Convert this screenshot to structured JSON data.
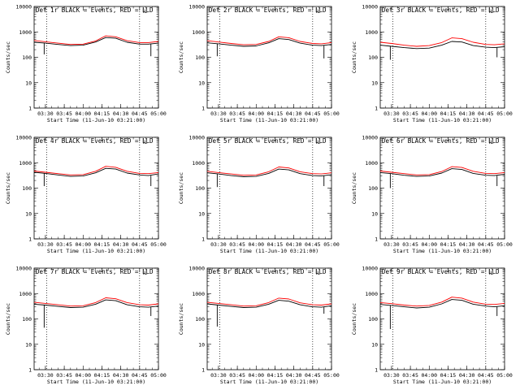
{
  "figure": {
    "ylabel": "Counts/sec",
    "xlabel": "Start Time (11-Jun-10 03:21:00)",
    "legend": "BLACK = Events, RED = LLD",
    "y_tick_labels": [
      "1",
      "10",
      "100",
      "1000",
      "10000"
    ],
    "x_tick_labels": [
      "03:30",
      "03:45",
      "04:00",
      "04:15",
      "04:30",
      "04:45",
      "05:00"
    ],
    "colors": {
      "events": "#000000",
      "lld": "#ff0000",
      "axes": "#000000",
      "background": "#ffffff"
    }
  },
  "chart_data": [
    {
      "type": "line",
      "title": "Det 1r BLACK = Events, RED = LLD",
      "xlabel": "Start Time (11-Jun-10 03:21:00)",
      "ylabel": "Counts/sec",
      "x_unit": "time (11-Jun-10)",
      "xlim": [
        "03:21",
        "05:00"
      ],
      "ylim": [
        1,
        10000
      ],
      "yscale": "log",
      "grid": false,
      "x_ticks": [
        "03:30",
        "03:45",
        "04:00",
        "04:15",
        "04:30",
        "04:45",
        "05:00"
      ],
      "y_ticks": [
        1,
        10,
        100,
        1000,
        10000
      ],
      "vlines": [
        "03:31",
        "04:45"
      ],
      "marker_label": "L",
      "marker_x": "04:48",
      "x": [
        "03:21",
        "03:30",
        "03:40",
        "03:50",
        "04:00",
        "04:10",
        "04:18",
        "04:26",
        "04:35",
        "04:45",
        "04:52",
        "05:00"
      ],
      "series": [
        {
          "name": "Events",
          "color": "#000000",
          "values": [
            390,
            360,
            320,
            290,
            300,
            400,
            600,
            560,
            390,
            330,
            330,
            360
          ],
          "drops": [
            [
              "03:29",
              130
            ],
            [
              "04:54",
              110
            ]
          ]
        },
        {
          "name": "LLD",
          "color": "#ff0000",
          "values": [
            460,
            410,
            360,
            320,
            330,
            440,
            700,
            640,
            450,
            380,
            380,
            420
          ],
          "drops": []
        }
      ]
    },
    {
      "type": "line",
      "title": "Det 2r BLACK = Events, RED = LLD",
      "xlabel": "Start Time (11-Jun-10 03:21:00)",
      "ylabel": "Counts/sec",
      "x_unit": "time (11-Jun-10)",
      "xlim": [
        "03:21",
        "05:00"
      ],
      "ylim": [
        1,
        10000
      ],
      "yscale": "log",
      "grid": false,
      "x_ticks": [
        "03:30",
        "03:45",
        "04:00",
        "04:15",
        "04:30",
        "04:45",
        "05:00"
      ],
      "y_ticks": [
        1,
        10,
        100,
        1000,
        10000
      ],
      "vlines": [
        "03:31",
        "04:45"
      ],
      "marker_label": "L",
      "marker_x": "04:48",
      "x": [
        "03:21",
        "03:30",
        "03:40",
        "03:50",
        "04:00",
        "04:10",
        "04:18",
        "04:26",
        "04:35",
        "04:45",
        "04:52",
        "05:00"
      ],
      "series": [
        {
          "name": "Events",
          "color": "#000000",
          "values": [
            370,
            340,
            300,
            270,
            280,
            370,
            540,
            500,
            360,
            300,
            290,
            320
          ],
          "drops": [
            [
              "03:29",
              110
            ],
            [
              "04:54",
              90
            ]
          ]
        },
        {
          "name": "LLD",
          "color": "#ff0000",
          "values": [
            450,
            400,
            350,
            310,
            320,
            420,
            640,
            590,
            420,
            350,
            340,
            380
          ],
          "drops": []
        }
      ]
    },
    {
      "type": "line",
      "title": "Det 3r BLACK = Events, RED = LLD",
      "xlabel": "Start Time (11-Jun-10 03:21:00)",
      "ylabel": "Counts/sec",
      "x_unit": "time (11-Jun-10)",
      "xlim": [
        "03:21",
        "05:00"
      ],
      "ylim": [
        1,
        10000
      ],
      "yscale": "log",
      "grid": false,
      "x_ticks": [
        "03:30",
        "03:45",
        "04:00",
        "04:15",
        "04:30",
        "04:45",
        "05:00"
      ],
      "y_ticks": [
        1,
        10,
        100,
        1000,
        10000
      ],
      "vlines": [
        "03:31",
        "04:45"
      ],
      "marker_label": "L",
      "marker_x": "04:48",
      "x": [
        "03:21",
        "03:30",
        "03:40",
        "03:50",
        "04:00",
        "04:10",
        "04:18",
        "04:26",
        "04:35",
        "04:45",
        "04:52",
        "05:00"
      ],
      "series": [
        {
          "name": "Events",
          "color": "#000000",
          "values": [
            300,
            270,
            240,
            220,
            230,
            300,
            420,
            400,
            290,
            250,
            240,
            260
          ],
          "drops": [
            [
              "03:29",
              80
            ],
            [
              "04:54",
              100
            ]
          ]
        },
        {
          "name": "LLD",
          "color": "#ff0000",
          "values": [
            390,
            350,
            300,
            270,
            290,
            380,
            580,
            540,
            390,
            320,
            310,
            340
          ],
          "drops": []
        }
      ]
    },
    {
      "type": "line",
      "title": "Det 4r BLACK = Events, RED = LLD",
      "xlabel": "Start Time (11-Jun-10 03:21:00)",
      "ylabel": "Counts/sec",
      "x_unit": "time (11-Jun-10)",
      "xlim": [
        "03:21",
        "05:00"
      ],
      "ylim": [
        1,
        10000
      ],
      "yscale": "log",
      "grid": false,
      "x_ticks": [
        "03:30",
        "03:45",
        "04:00",
        "04:15",
        "04:30",
        "04:45",
        "05:00"
      ],
      "y_ticks": [
        1,
        10,
        100,
        1000,
        10000
      ],
      "vlines": [
        "03:31",
        "04:45"
      ],
      "marker_label": "L",
      "marker_x": "04:48",
      "x": [
        "03:21",
        "03:30",
        "03:40",
        "03:50",
        "04:00",
        "04:10",
        "04:18",
        "04:26",
        "04:35",
        "04:45",
        "04:52",
        "05:00"
      ],
      "series": [
        {
          "name": "Events",
          "color": "#000000",
          "values": [
            420,
            380,
            330,
            290,
            300,
            400,
            600,
            560,
            390,
            330,
            310,
            360
          ],
          "drops": [
            [
              "03:29",
              120
            ],
            [
              "04:54",
              120
            ]
          ]
        },
        {
          "name": "LLD",
          "color": "#ff0000",
          "values": [
            470,
            420,
            370,
            330,
            340,
            460,
            720,
            660,
            460,
            380,
            370,
            410
          ],
          "drops": []
        }
      ]
    },
    {
      "type": "line",
      "title": "Det 5r BLACK = Events, RED = LLD",
      "xlabel": "Start Time (11-Jun-10 03:21:00)",
      "ylabel": "Counts/sec",
      "x_unit": "time (11-Jun-10)",
      "xlim": [
        "03:21",
        "05:00"
      ],
      "ylim": [
        1,
        10000
      ],
      "yscale": "log",
      "grid": false,
      "x_ticks": [
        "03:30",
        "03:45",
        "04:00",
        "04:15",
        "04:30",
        "04:45",
        "05:00"
      ],
      "y_ticks": [
        1,
        10,
        100,
        1000,
        10000
      ],
      "vlines": [
        "03:31",
        "04:45"
      ],
      "marker_label": "L",
      "marker_x": "04:48",
      "x": [
        "03:21",
        "03:30",
        "03:40",
        "03:50",
        "04:00",
        "04:10",
        "04:18",
        "04:26",
        "04:35",
        "04:45",
        "04:52",
        "05:00"
      ],
      "series": [
        {
          "name": "Events",
          "color": "#000000",
          "values": [
            400,
            360,
            310,
            280,
            290,
            380,
            560,
            520,
            370,
            310,
            300,
            340
          ],
          "drops": [
            [
              "03:29",
              110
            ],
            [
              "04:54",
              120
            ]
          ]
        },
        {
          "name": "LLD",
          "color": "#ff0000",
          "values": [
            460,
            410,
            360,
            320,
            330,
            440,
            680,
            620,
            440,
            370,
            360,
            400
          ],
          "drops": []
        }
      ]
    },
    {
      "type": "line",
      "title": "Det 6r BLACK = Events, RED = LLD",
      "xlabel": "Start Time (11-Jun-10 03:21:00)",
      "ylabel": "Counts/sec",
      "x_unit": "time (11-Jun-10)",
      "xlim": [
        "03:21",
        "05:00"
      ],
      "ylim": [
        1,
        10000
      ],
      "yscale": "log",
      "grid": false,
      "x_ticks": [
        "03:30",
        "03:45",
        "04:00",
        "04:15",
        "04:30",
        "04:45",
        "05:00"
      ],
      "y_ticks": [
        1,
        10,
        100,
        1000,
        10000
      ],
      "vlines": [
        "03:31",
        "04:45"
      ],
      "marker_label": "L",
      "marker_x": "04:48",
      "x": [
        "03:21",
        "03:30",
        "03:40",
        "03:50",
        "04:00",
        "04:10",
        "04:18",
        "04:26",
        "04:35",
        "04:45",
        "04:52",
        "05:00"
      ],
      "series": [
        {
          "name": "Events",
          "color": "#000000",
          "values": [
            410,
            370,
            320,
            290,
            300,
            390,
            580,
            540,
            380,
            320,
            310,
            350
          ],
          "drops": [
            [
              "03:29",
              100
            ],
            [
              "04:54",
              120
            ]
          ]
        },
        {
          "name": "LLD",
          "color": "#ff0000",
          "values": [
            470,
            420,
            370,
            330,
            340,
            450,
            700,
            650,
            460,
            380,
            370,
            410
          ],
          "drops": []
        }
      ]
    },
    {
      "type": "line",
      "title": "Det 7r BLACK = Events, RED = LLD",
      "xlabel": "Start Time (11-Jun-10 03:21:00)",
      "ylabel": "Counts/sec",
      "x_unit": "time (11-Jun-10)",
      "xlim": [
        "03:21",
        "05:00"
      ],
      "ylim": [
        1,
        10000
      ],
      "yscale": "log",
      "grid": false,
      "x_ticks": [
        "03:30",
        "03:45",
        "04:00",
        "04:15",
        "04:30",
        "04:45",
        "05:00"
      ],
      "y_ticks": [
        1,
        10,
        100,
        1000,
        10000
      ],
      "vlines": [
        "03:31",
        "04:45"
      ],
      "marker_label": "L",
      "marker_x": "04:48",
      "x": [
        "03:21",
        "03:30",
        "03:40",
        "03:50",
        "04:00",
        "04:10",
        "04:18",
        "04:26",
        "04:35",
        "04:45",
        "04:52",
        "05:00"
      ],
      "series": [
        {
          "name": "Events",
          "color": "#000000",
          "values": [
            380,
            350,
            310,
            280,
            290,
            380,
            560,
            520,
            360,
            300,
            290,
            320
          ],
          "drops": [
            [
              "03:29",
              45
            ],
            [
              "04:54",
              130
            ]
          ]
        },
        {
          "name": "LLD",
          "color": "#ff0000",
          "values": [
            450,
            410,
            360,
            320,
            330,
            440,
            680,
            620,
            440,
            360,
            350,
            390
          ],
          "drops": []
        }
      ]
    },
    {
      "type": "line",
      "title": "Det 8r BLACK = Events, RED = LLD",
      "xlabel": "Start Time (11-Jun-10 03:21:00)",
      "ylabel": "Counts/sec",
      "x_unit": "time (11-Jun-10)",
      "xlim": [
        "03:21",
        "05:00"
      ],
      "ylim": [
        1,
        10000
      ],
      "yscale": "log",
      "grid": false,
      "x_ticks": [
        "03:30",
        "03:45",
        "04:00",
        "04:15",
        "04:30",
        "04:45",
        "05:00"
      ],
      "y_ticks": [
        1,
        10,
        100,
        1000,
        10000
      ],
      "vlines": [
        "03:31",
        "04:45"
      ],
      "marker_label": "L",
      "marker_x": "04:48",
      "x": [
        "03:21",
        "03:30",
        "03:40",
        "03:50",
        "04:00",
        "04:10",
        "04:18",
        "04:26",
        "04:35",
        "04:45",
        "04:52",
        "05:00"
      ],
      "series": [
        {
          "name": "Events",
          "color": "#000000",
          "values": [
            390,
            350,
            310,
            280,
            290,
            380,
            540,
            500,
            360,
            300,
            290,
            330
          ],
          "drops": [
            [
              "03:29",
              50
            ],
            [
              "04:54",
              160
            ]
          ]
        },
        {
          "name": "LLD",
          "color": "#ff0000",
          "values": [
            450,
            410,
            360,
            320,
            330,
            440,
            660,
            610,
            430,
            360,
            350,
            390
          ],
          "drops": []
        }
      ]
    },
    {
      "type": "line",
      "title": "Det 9r BLACK = Events, RED = LLD",
      "xlabel": "Start Time (11-Jun-10 03:21:00)",
      "ylabel": "Counts/sec",
      "x_unit": "time (11-Jun-10)",
      "xlim": [
        "03:21",
        "05:00"
      ],
      "ylim": [
        1,
        10000
      ],
      "yscale": "log",
      "grid": false,
      "x_ticks": [
        "03:30",
        "03:45",
        "04:00",
        "04:15",
        "04:30",
        "04:45",
        "05:00"
      ],
      "y_ticks": [
        1,
        10,
        100,
        1000,
        10000
      ],
      "vlines": [
        "03:31",
        "04:45"
      ],
      "marker_label": "L",
      "marker_x": "04:48",
      "x": [
        "03:21",
        "03:30",
        "03:40",
        "03:50",
        "04:00",
        "04:10",
        "04:18",
        "04:26",
        "04:35",
        "04:45",
        "04:52",
        "05:00"
      ],
      "series": [
        {
          "name": "Events",
          "color": "#000000",
          "values": [
            370,
            340,
            300,
            270,
            290,
            390,
            580,
            540,
            380,
            320,
            300,
            330
          ],
          "drops": [
            [
              "03:29",
              40
            ],
            [
              "04:54",
              130
            ]
          ]
        },
        {
          "name": "LLD",
          "color": "#ff0000",
          "values": [
            440,
            400,
            350,
            320,
            340,
            460,
            720,
            660,
            460,
            380,
            370,
            410
          ],
          "drops": []
        }
      ]
    }
  ]
}
